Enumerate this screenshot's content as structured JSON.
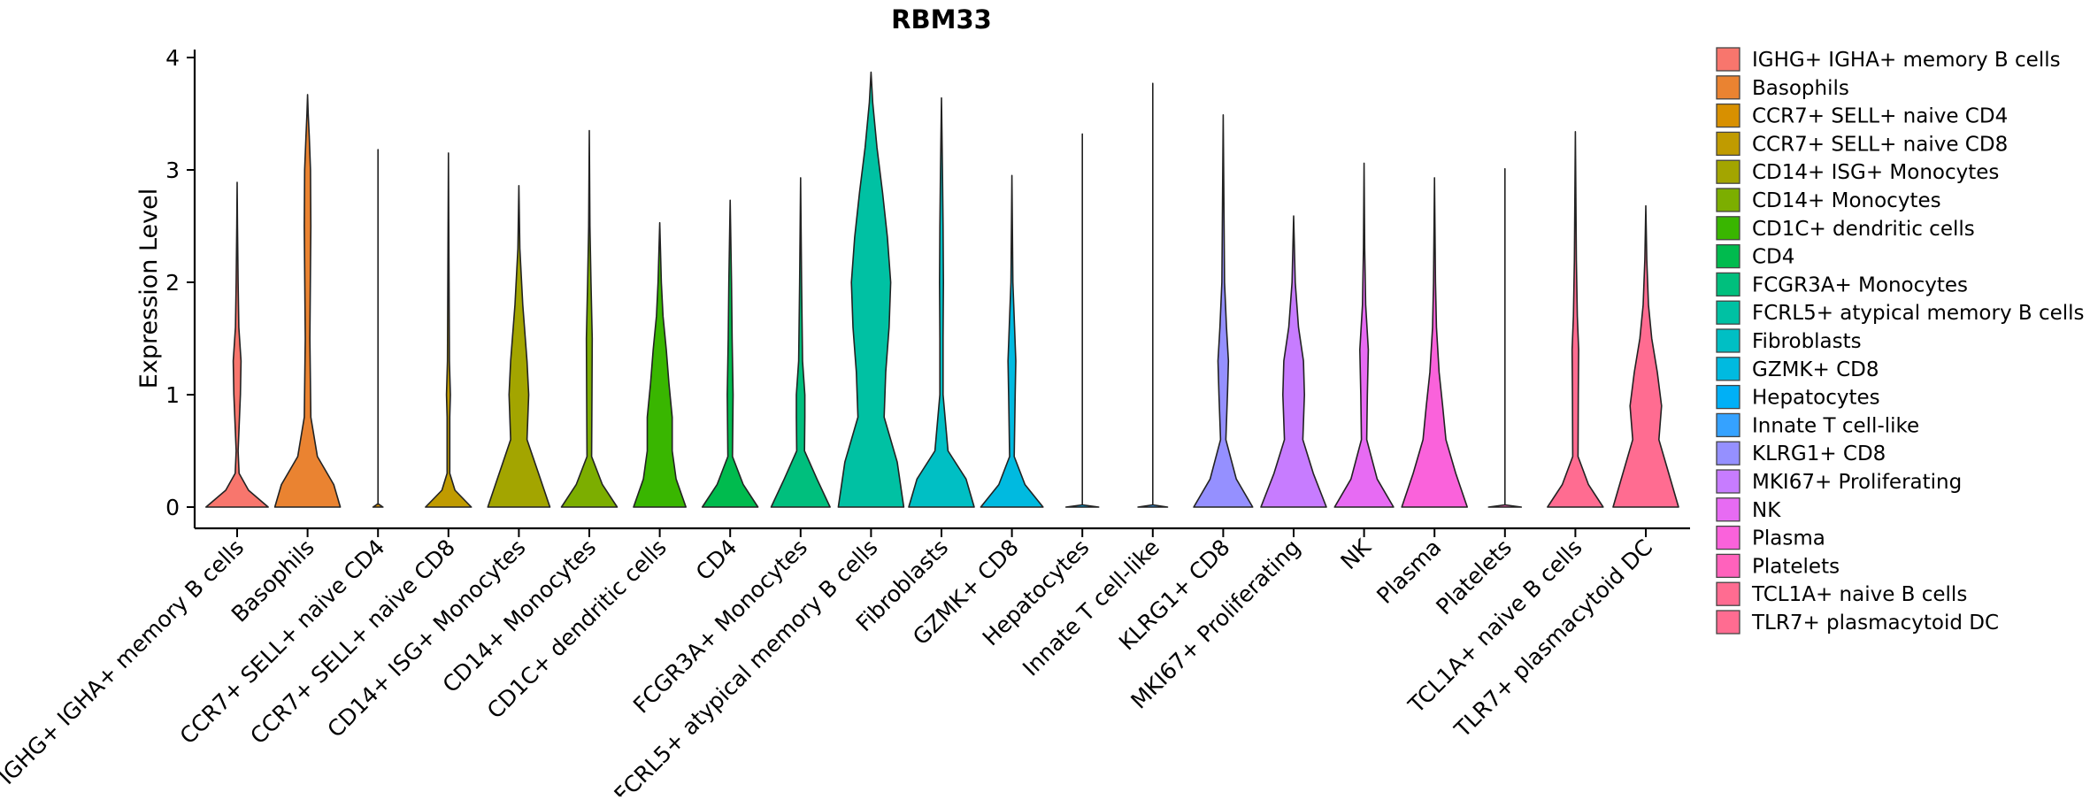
{
  "chart_data": {
    "type": "violin",
    "title": "RBM33",
    "xlabel": "",
    "ylabel": "Expression Level",
    "ylim": [
      -0.2,
      4.08
    ],
    "yticks": [
      0,
      1,
      2,
      3,
      4
    ],
    "legend_position": "right",
    "categories": [
      " IGHG+ IGHA+ memory B cells",
      "Basophils",
      "CCR7+ SELL+ naive CD4",
      "CCR7+ SELL+ naive CD8",
      "CD14+ ISG+ Monocytes",
      "CD14+ Monocytes",
      "CD1C+ dendritic cells",
      "CD4",
      "FCGR3A+ Monocytes",
      "FCRL5+ atypical memory B cells",
      "Fibroblasts",
      "GZMK+ CD8",
      "Hepatocytes",
      "Innate T cell-like",
      "KLRG1+ CD8",
      "MKI67+ Proliferating",
      "NK",
      "Plasma",
      "Platelets",
      "TCL1A+ naive B cells",
      "TLR7+ plasmacytoid DC"
    ],
    "colors": [
      "#F8766D",
      "#EA8331",
      "#D89000",
      "#C09B00",
      "#A3A500",
      "#7CAE00",
      "#39B600",
      "#00BB4E",
      "#00BF7D",
      "#00C1A3",
      "#00BFC4",
      "#00BAE0",
      "#00B0F6",
      "#35A2FF",
      "#9590FF",
      "#C77CFF",
      "#E76BF3",
      "#FA62DB",
      "#FF62BC",
      "#FF6C91",
      "#FF6C91"
    ],
    "max_values": [
      2.89,
      3.67,
      3.18,
      3.15,
      2.86,
      3.35,
      2.53,
      2.73,
      2.93,
      3.87,
      3.64,
      2.95,
      3.32,
      3.77,
      3.49,
      2.59,
      3.06,
      2.93,
      3.01,
      3.34,
      2.68
    ],
    "density_profiles": [
      [
        [
          0,
          0.95
        ],
        [
          0.15,
          0.35
        ],
        [
          0.3,
          0.06
        ],
        [
          0.5,
          0.03
        ],
        [
          1.0,
          0.1
        ],
        [
          1.3,
          0.12
        ],
        [
          1.6,
          0.05
        ],
        [
          2.0,
          0.03
        ],
        [
          2.5,
          0.01
        ],
        [
          2.89,
          0
        ]
      ],
      [
        [
          0,
          1.0
        ],
        [
          0.2,
          0.8
        ],
        [
          0.45,
          0.3
        ],
        [
          0.8,
          0.1
        ],
        [
          1.5,
          0.07
        ],
        [
          2.5,
          0.1
        ],
        [
          3.0,
          0.09
        ],
        [
          3.3,
          0.05
        ],
        [
          3.5,
          0.02
        ],
        [
          3.67,
          0
        ]
      ],
      [
        [
          0,
          0.15
        ],
        [
          0.03,
          0
        ],
        [
          1.0,
          0
        ],
        [
          3.18,
          0
        ]
      ],
      [
        [
          0,
          0.7
        ],
        [
          0.15,
          0.2
        ],
        [
          0.3,
          0.04
        ],
        [
          0.8,
          0.04
        ],
        [
          1.0,
          0.06
        ],
        [
          1.3,
          0.03
        ],
        [
          2.0,
          0.02
        ],
        [
          2.5,
          0.01
        ],
        [
          3.15,
          0
        ]
      ],
      [
        [
          0,
          0.95
        ],
        [
          0.3,
          0.6
        ],
        [
          0.6,
          0.25
        ],
        [
          1.0,
          0.3
        ],
        [
          1.3,
          0.25
        ],
        [
          1.8,
          0.12
        ],
        [
          2.3,
          0.03
        ],
        [
          2.86,
          0
        ]
      ],
      [
        [
          0,
          0.85
        ],
        [
          0.2,
          0.4
        ],
        [
          0.45,
          0.07
        ],
        [
          1.0,
          0.08
        ],
        [
          1.5,
          0.09
        ],
        [
          2.0,
          0.05
        ],
        [
          2.5,
          0.02
        ],
        [
          3.35,
          0
        ]
      ],
      [
        [
          0,
          0.8
        ],
        [
          0.25,
          0.5
        ],
        [
          0.5,
          0.38
        ],
        [
          0.8,
          0.38
        ],
        [
          1.1,
          0.28
        ],
        [
          1.4,
          0.2
        ],
        [
          1.7,
          0.1
        ],
        [
          2.0,
          0.05
        ],
        [
          2.53,
          0
        ]
      ],
      [
        [
          0,
          0.85
        ],
        [
          0.2,
          0.4
        ],
        [
          0.45,
          0.07
        ],
        [
          1.0,
          0.09
        ],
        [
          1.5,
          0.06
        ],
        [
          2.0,
          0.04
        ],
        [
          2.73,
          0
        ]
      ],
      [
        [
          0,
          0.9
        ],
        [
          0.25,
          0.5
        ],
        [
          0.5,
          0.12
        ],
        [
          0.8,
          0.13
        ],
        [
          1.0,
          0.13
        ],
        [
          1.3,
          0.06
        ],
        [
          2.0,
          0.03
        ],
        [
          2.93,
          0
        ]
      ],
      [
        [
          0,
          1.0
        ],
        [
          0.4,
          0.8
        ],
        [
          0.8,
          0.4
        ],
        [
          1.2,
          0.45
        ],
        [
          1.6,
          0.55
        ],
        [
          2.0,
          0.6
        ],
        [
          2.4,
          0.5
        ],
        [
          2.8,
          0.35
        ],
        [
          3.2,
          0.18
        ],
        [
          3.6,
          0.05
        ],
        [
          3.87,
          0
        ]
      ],
      [
        [
          0,
          1.0
        ],
        [
          0.25,
          0.75
        ],
        [
          0.5,
          0.2
        ],
        [
          1.0,
          0.05
        ],
        [
          1.5,
          0.05
        ],
        [
          2.0,
          0.06
        ],
        [
          2.5,
          0.05
        ],
        [
          3.0,
          0.03
        ],
        [
          3.64,
          0
        ]
      ],
      [
        [
          0,
          0.95
        ],
        [
          0.2,
          0.4
        ],
        [
          0.45,
          0.07
        ],
        [
          1.0,
          0.1
        ],
        [
          1.3,
          0.12
        ],
        [
          1.6,
          0.08
        ],
        [
          2.0,
          0.03
        ],
        [
          2.95,
          0
        ]
      ],
      [
        [
          0,
          0.5
        ],
        [
          0.02,
          0
        ],
        [
          1.0,
          0
        ],
        [
          3.32,
          0
        ]
      ],
      [
        [
          0,
          0.45
        ],
        [
          0.02,
          0
        ],
        [
          1.0,
          0
        ],
        [
          3.77,
          0
        ]
      ],
      [
        [
          0,
          0.9
        ],
        [
          0.25,
          0.4
        ],
        [
          0.6,
          0.08
        ],
        [
          1.0,
          0.13
        ],
        [
          1.3,
          0.16
        ],
        [
          1.6,
          0.1
        ],
        [
          2.0,
          0.04
        ],
        [
          3.49,
          0
        ]
      ],
      [
        [
          0,
          1.0
        ],
        [
          0.3,
          0.6
        ],
        [
          0.6,
          0.28
        ],
        [
          1.0,
          0.33
        ],
        [
          1.3,
          0.3
        ],
        [
          1.6,
          0.15
        ],
        [
          2.0,
          0.05
        ],
        [
          2.59,
          0
        ]
      ],
      [
        [
          0,
          0.9
        ],
        [
          0.25,
          0.4
        ],
        [
          0.6,
          0.08
        ],
        [
          1.0,
          0.1
        ],
        [
          1.4,
          0.13
        ],
        [
          1.8,
          0.05
        ],
        [
          2.3,
          0.02
        ],
        [
          3.06,
          0
        ]
      ],
      [
        [
          0,
          1.0
        ],
        [
          0.3,
          0.65
        ],
        [
          0.6,
          0.35
        ],
        [
          0.9,
          0.25
        ],
        [
          1.2,
          0.14
        ],
        [
          1.6,
          0.06
        ],
        [
          2.0,
          0.03
        ],
        [
          2.93,
          0
        ]
      ],
      [
        [
          0,
          0.5
        ],
        [
          0.02,
          0
        ],
        [
          1.0,
          0
        ],
        [
          3.01,
          0
        ]
      ],
      [
        [
          0,
          0.85
        ],
        [
          0.2,
          0.4
        ],
        [
          0.45,
          0.08
        ],
        [
          1.0,
          0.09
        ],
        [
          1.4,
          0.1
        ],
        [
          1.7,
          0.06
        ],
        [
          2.2,
          0.03
        ],
        [
          3.34,
          0
        ]
      ],
      [
        [
          0,
          1.0
        ],
        [
          0.3,
          0.7
        ],
        [
          0.6,
          0.4
        ],
        [
          0.9,
          0.48
        ],
        [
          1.2,
          0.35
        ],
        [
          1.5,
          0.18
        ],
        [
          1.8,
          0.08
        ],
        [
          2.2,
          0.03
        ],
        [
          2.68,
          0
        ]
      ]
    ]
  }
}
